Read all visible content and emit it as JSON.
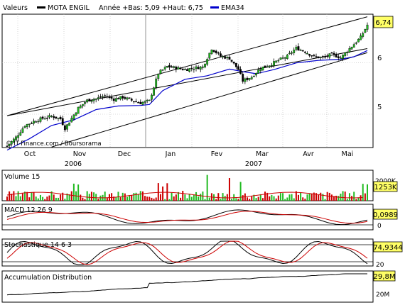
{
  "header": {
    "valeurs_label": "Valeurs",
    "instrument": "MOTA ENGIL",
    "stats": "Année +Bas: 5,09 +Haut: 6,75",
    "ema_label": "EMA34",
    "colors": {
      "price": "#000000",
      "ema": "#0000cc"
    }
  },
  "credit": "© IT-Finance.com / Boursorama",
  "x_axis": {
    "months": [
      "Oct",
      "Nov",
      "Dec",
      "Jan",
      "Fev",
      "Mar",
      "Avr",
      "Mai"
    ],
    "years": [
      "2006",
      "2007"
    ]
  },
  "chart_data": [
    {
      "type": "candlestick",
      "panel": "price",
      "y_ticks": [
        "6",
        "5"
      ],
      "ylim": [
        4.35,
        6.95
      ],
      "last_value_label": "6,74",
      "ema_period": 34,
      "trend_channel": {
        "upper": [
          {
            "t": 0,
            "v": 4.97
          },
          {
            "t": 162,
            "v": 6.9
          }
        ],
        "middle": [
          {
            "t": 0,
            "v": 4.97
          },
          {
            "t": 162,
            "v": 6.28
          }
        ],
        "lower": [
          {
            "t": 20,
            "v": 4.36
          },
          {
            "t": 162,
            "v": 6.2
          }
        ]
      },
      "series": [
        {
          "name": "MOTA ENGIL",
          "close_path": [
            [
              0,
              4.38
            ],
            [
              4,
              4.55
            ],
            [
              8,
              4.78
            ],
            [
              12,
              4.86
            ],
            [
              16,
              4.92
            ],
            [
              20,
              4.96
            ],
            [
              24,
              4.91
            ],
            [
              26,
              4.72
            ],
            [
              29,
              4.92
            ],
            [
              32,
              5.12
            ],
            [
              36,
              5.27
            ],
            [
              40,
              5.3
            ],
            [
              44,
              5.36
            ],
            [
              48,
              5.29
            ],
            [
              52,
              5.33
            ],
            [
              56,
              5.27
            ],
            [
              60,
              5.22
            ],
            [
              64,
              5.26
            ],
            [
              68,
              5.8
            ],
            [
              72,
              5.93
            ],
            [
              76,
              5.9
            ],
            [
              80,
              5.87
            ],
            [
              84,
              5.9
            ],
            [
              88,
              5.92
            ],
            [
              92,
              6.28
            ],
            [
              96,
              6.13
            ],
            [
              100,
              6.09
            ],
            [
              104,
              5.87
            ],
            [
              106,
              5.65
            ],
            [
              110,
              5.73
            ],
            [
              114,
              5.9
            ],
            [
              118,
              5.96
            ],
            [
              122,
              6.05
            ],
            [
              126,
              6.13
            ],
            [
              130,
              6.29
            ],
            [
              134,
              6.22
            ],
            [
              138,
              6.12
            ],
            [
              142,
              6.1
            ],
            [
              146,
              6.17
            ],
            [
              150,
              6.1
            ],
            [
              154,
              6.28
            ],
            [
              157,
              6.41
            ],
            [
              159,
              6.5
            ],
            [
              162,
              6.74
            ]
          ]
        },
        {
          "name": "EMA34",
          "values": [
            [
              0,
              4.3
            ],
            [
              10,
              4.52
            ],
            [
              20,
              4.78
            ],
            [
              30,
              4.89
            ],
            [
              40,
              5.09
            ],
            [
              50,
              5.16
            ],
            [
              60,
              5.17
            ],
            [
              64,
              5.19
            ],
            [
              70,
              5.46
            ],
            [
              80,
              5.68
            ],
            [
              90,
              5.75
            ],
            [
              100,
              5.88
            ],
            [
              106,
              5.83
            ],
            [
              112,
              5.79
            ],
            [
              120,
              5.87
            ],
            [
              130,
              6.0
            ],
            [
              140,
              6.05
            ],
            [
              150,
              6.07
            ],
            [
              156,
              6.12
            ],
            [
              162,
              6.24
            ]
          ]
        }
      ]
    },
    {
      "type": "bar",
      "panel": "volume",
      "title": "Volume 15",
      "y_ticks": [
        "2000K"
      ],
      "last_value_label": "1253K"
    },
    {
      "type": "line",
      "panel": "macd",
      "title": "MACD 12 26 9",
      "y_ticks": [
        "0"
      ],
      "last_value_label": "0,0989"
    },
    {
      "type": "line",
      "panel": "stochastics",
      "title": "Stochastique 14 6 3",
      "y_ticks": [
        "20"
      ],
      "last_value_label": "74,9344",
      "levels": [
        80,
        20
      ]
    },
    {
      "type": "line",
      "panel": "accumulation",
      "title": "Accumulation Distribution",
      "y_ticks": [
        "20M"
      ],
      "last_value_label": "29,8M"
    }
  ]
}
